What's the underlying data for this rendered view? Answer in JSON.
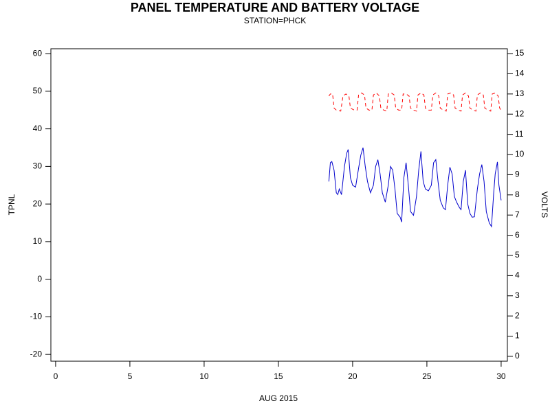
{
  "chart_data": {
    "type": "line",
    "title": "PANEL TEMPERATURE AND BATTERY VOLTAGE",
    "subtitle": "STATION=PHCK",
    "xlabel": "AUG 2015",
    "ylabel": "TPNL",
    "y2label": "VOLTS",
    "xlim": [
      -0.32,
      30.42
    ],
    "xticks": [
      0,
      5,
      10,
      15,
      20,
      25,
      30
    ],
    "ylim": [
      -21.8,
      61.3
    ],
    "yticks": [
      -20,
      -10,
      0,
      10,
      20,
      30,
      40,
      50,
      60
    ],
    "y2lim": [
      -0.24,
      15.24
    ],
    "y2ticks": [
      0,
      1,
      2,
      3,
      4,
      5,
      6,
      7,
      8,
      9,
      10,
      11,
      12,
      13,
      14,
      15
    ],
    "series": [
      {
        "color": "#0000cc",
        "style": "solid",
        "x": [
          18.4,
          18.5,
          18.6,
          18.75,
          18.9,
          19.0,
          19.1,
          19.25,
          19.45,
          19.6,
          19.7,
          19.85,
          20.0,
          20.2,
          20.4,
          20.55,
          20.7,
          20.85,
          21.0,
          21.2,
          21.4,
          21.55,
          21.7,
          21.85,
          22.0,
          22.2,
          22.4,
          22.55,
          22.7,
          22.85,
          23.0,
          23.2,
          23.3,
          23.45,
          23.6,
          23.75,
          23.9,
          24.1,
          24.3,
          24.45,
          24.6,
          24.75,
          24.9,
          25.1,
          25.3,
          25.45,
          25.6,
          25.75,
          25.9,
          26.1,
          26.25,
          26.4,
          26.55,
          26.7,
          26.85,
          27.0,
          27.2,
          27.3,
          27.45,
          27.6,
          27.75,
          27.9,
          28.05,
          28.2,
          28.4,
          28.55,
          28.7,
          28.85,
          29.0,
          29.2,
          29.35,
          29.5,
          29.6,
          29.75,
          29.85,
          30.0
        ],
        "values": [
          26,
          31,
          31.3,
          29,
          23,
          22.5,
          24,
          22.5,
          30,
          33.5,
          34.5,
          27,
          25,
          24.5,
          29.5,
          33,
          35,
          30,
          26,
          23,
          25,
          30,
          31.8,
          28,
          23,
          20.5,
          25,
          30,
          29,
          24,
          17.5,
          16.5,
          15.2,
          27,
          31,
          25,
          18,
          17,
          22,
          29,
          34,
          26,
          24,
          23.5,
          25,
          31,
          31.8,
          26,
          21,
          19,
          18.5,
          25,
          29.8,
          28,
          22,
          20.5,
          19,
          18.5,
          26,
          29,
          20,
          17.5,
          16.5,
          16.6,
          24,
          28,
          30.5,
          26,
          18,
          15,
          14,
          23,
          28,
          31.2,
          25,
          21
        ]
      },
      {
        "color": "#ff0000",
        "style": "dashed",
        "axis": "y2",
        "x": [
          18.4,
          18.5,
          18.65,
          18.75,
          18.9,
          19.2,
          19.35,
          19.55,
          19.75,
          19.85,
          20.1,
          20.3,
          20.4,
          20.6,
          20.8,
          20.9,
          21.1,
          21.3,
          21.4,
          21.6,
          21.8,
          21.9,
          22.1,
          22.3,
          22.4,
          22.6,
          22.8,
          22.9,
          23.1,
          23.3,
          23.4,
          23.6,
          23.8,
          23.9,
          24.1,
          24.3,
          24.4,
          24.6,
          24.8,
          24.9,
          25.1,
          25.3,
          25.4,
          25.6,
          25.8,
          25.9,
          26.1,
          26.3,
          26.4,
          26.6,
          26.8,
          26.9,
          27.1,
          27.3,
          27.4,
          27.6,
          27.8,
          27.9,
          28.1,
          28.3,
          28.4,
          28.6,
          28.8,
          28.9,
          29.1,
          29.3,
          29.4,
          29.6,
          29.8,
          29.9,
          30.0
        ],
        "values": [
          12.9,
          13.0,
          13.0,
          12.3,
          12.2,
          12.15,
          12.9,
          13.0,
          12.9,
          12.3,
          12.2,
          12.2,
          12.95,
          13.05,
          12.95,
          12.3,
          12.2,
          12.2,
          12.95,
          13.05,
          12.9,
          12.3,
          12.2,
          12.15,
          13.0,
          13.05,
          12.95,
          12.3,
          12.2,
          12.2,
          13.0,
          13.0,
          12.9,
          12.3,
          12.2,
          12.15,
          12.95,
          13.05,
          12.95,
          12.3,
          12.2,
          12.2,
          12.95,
          13.05,
          12.9,
          12.3,
          12.2,
          12.15,
          13.0,
          13.05,
          12.95,
          12.3,
          12.2,
          12.15,
          12.95,
          13.05,
          12.9,
          12.3,
          12.2,
          12.15,
          12.95,
          13.05,
          12.95,
          12.3,
          12.2,
          12.15,
          13.0,
          13.05,
          12.9,
          12.3,
          12.2
        ]
      }
    ]
  }
}
